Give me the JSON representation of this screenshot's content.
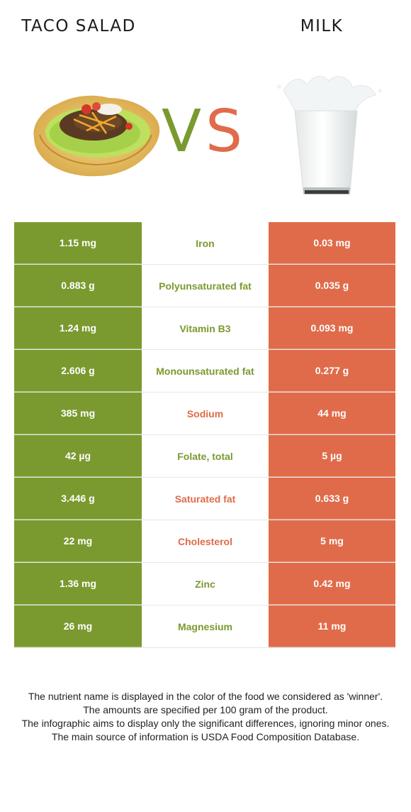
{
  "left_food": {
    "title": "TACO SALAD",
    "image": "taco-salad-photo",
    "color": "#7a9a2f"
  },
  "right_food": {
    "title": "MILK",
    "image": "glass-of-milk-photo",
    "color": "#e06b4a"
  },
  "vs": {
    "v": "V",
    "s": "S"
  },
  "rows": [
    {
      "left": "1.15 mg",
      "nutrient": "Iron",
      "right": "0.03 mg",
      "winner": "left"
    },
    {
      "left": "0.883 g",
      "nutrient": "Polyunsaturated fat",
      "right": "0.035 g",
      "winner": "left"
    },
    {
      "left": "1.24 mg",
      "nutrient": "Vitamin B3",
      "right": "0.093 mg",
      "winner": "left"
    },
    {
      "left": "2.606 g",
      "nutrient": "Monounsaturated fat",
      "right": "0.277 g",
      "winner": "left"
    },
    {
      "left": "385 mg",
      "nutrient": "Sodium",
      "right": "44 mg",
      "winner": "right"
    },
    {
      "left": "42 µg",
      "nutrient": "Folate, total",
      "right": "5 µg",
      "winner": "left"
    },
    {
      "left": "3.446 g",
      "nutrient": "Saturated fat",
      "right": "0.633 g",
      "winner": "right"
    },
    {
      "left": "22 mg",
      "nutrient": "Cholesterol",
      "right": "5 mg",
      "winner": "right"
    },
    {
      "left": "1.36 mg",
      "nutrient": "Zinc",
      "right": "0.42 mg",
      "winner": "left"
    },
    {
      "left": "26 mg",
      "nutrient": "Magnesium",
      "right": "11 mg",
      "winner": "left"
    }
  ],
  "footnote": {
    "line1": "The nutrient name is displayed in the color of the food we considered as 'winner'.",
    "line2": "The amounts are specified per 100 gram of the product.",
    "line3": "The infographic aims to display only the significant differences, ignoring minor ones.",
    "line4": "The main source of information is USDA Food Composition Database."
  }
}
